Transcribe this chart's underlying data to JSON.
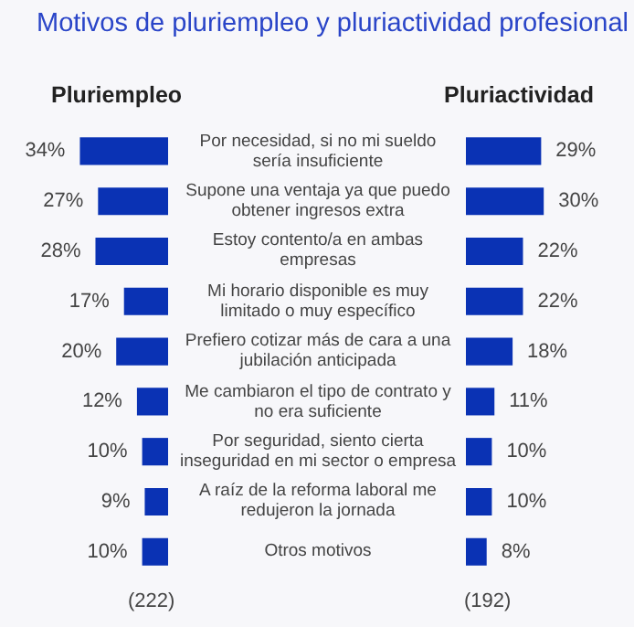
{
  "chart_data": [
    {
      "type": "bar",
      "title": "Motivos de pluriempleo y pluriactividad profesional",
      "orientation": "horizontal",
      "categories": [
        "Por necesidad, si no mi sueldo sería insuficiente",
        "Supone una ventaja ya que puedo obtener ingresos extra",
        "Estoy contento/a en ambas empresas",
        "Mi horario disponible es muy limitado o muy específico",
        "Prefiero cotizar más de cara a una jubilación anticipada",
        "Me cambiaron el tipo de contrato y no era suficiente",
        "Por seguridad, siento cierta inseguridad en mi sector o empresa",
        "A raíz de la reforma laboral me redujeron la jornada",
        "Otros motivos"
      ],
      "series": [
        {
          "name": "Pluriempleo",
          "color": "#0a32b4",
          "values": [
            34,
            27,
            28,
            17,
            20,
            12,
            10,
            9,
            10
          ],
          "value_labels": [
            "34%",
            "27%",
            "28%",
            "17%",
            "20%",
            "12%",
            "10%",
            "9%",
            "10%"
          ]
        }
      ],
      "annotations": [
        "(222)"
      ]
    },
    {
      "type": "bar",
      "orientation": "horizontal",
      "categories": [
        null,
        null,
        null,
        null,
        null,
        null,
        null,
        null,
        null
      ],
      "series": [
        {
          "name": "Pluriactividad",
          "color": "#0a32b4",
          "values": [
            29,
            30,
            22,
            22,
            18,
            11,
            10,
            10,
            8
          ],
          "value_labels": [
            "29%",
            "30%",
            "22%",
            "22%",
            "18%",
            "11%",
            "10%",
            "10%",
            "8%"
          ]
        }
      ],
      "annotations": [
        "(192)"
      ]
    }
  ]
}
